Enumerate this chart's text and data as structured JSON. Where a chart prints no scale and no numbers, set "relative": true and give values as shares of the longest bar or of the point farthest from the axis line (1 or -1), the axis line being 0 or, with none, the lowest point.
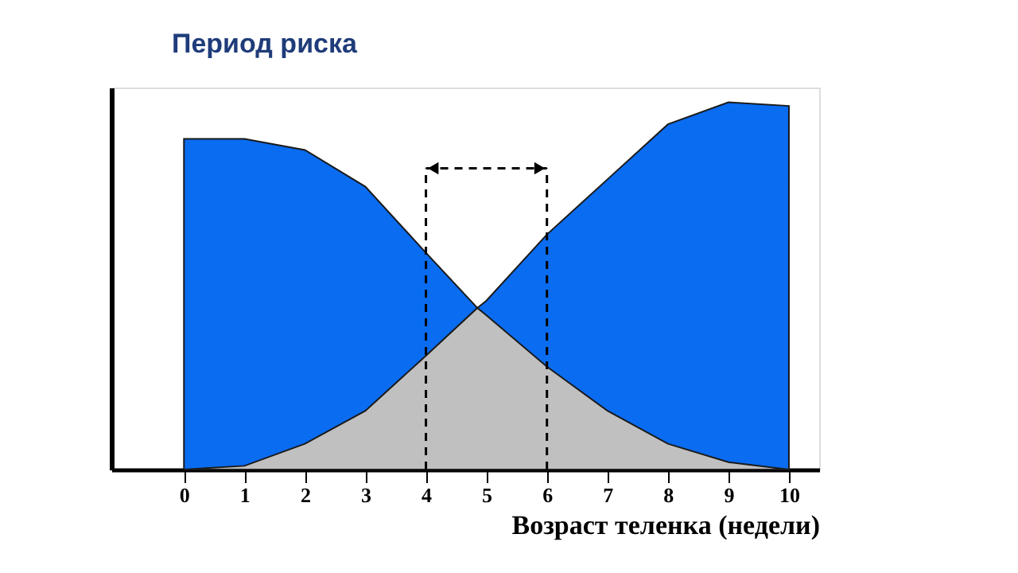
{
  "chart_data": {
    "type": "area",
    "title": "Период риска",
    "xlabel": "Возраст теленка (недели)",
    "relative": true,
    "x": [
      0,
      1,
      2,
      3,
      4,
      4.85,
      5,
      6,
      7,
      8,
      9,
      10
    ],
    "series": [
      {
        "color": "#0a6cf0",
        "values": [
          0.9,
          0.9,
          0.87,
          0.77,
          0.59,
          0.44,
          0.46,
          0.64,
          0.79,
          0.94,
          1.0,
          0.99
        ]
      },
      {
        "color": "#c0c0c0",
        "values": [
          0,
          0.01,
          0.07,
          0.16,
          0.31,
          0.44,
          0.42,
          0.28,
          0.16,
          0.07,
          0.02,
          0
        ]
      }
    ],
    "xlim": [
      -1.2,
      10.5
    ],
    "xticks": [
      0,
      1,
      2,
      3,
      4,
      5,
      6,
      7,
      8,
      9,
      10
    ],
    "ref_lines": [
      {
        "axis": "x",
        "value": 4,
        "line_style": "dashed"
      },
      {
        "axis": "x",
        "value": 6,
        "line_style": "dashed"
      }
    ],
    "grid": false
  }
}
